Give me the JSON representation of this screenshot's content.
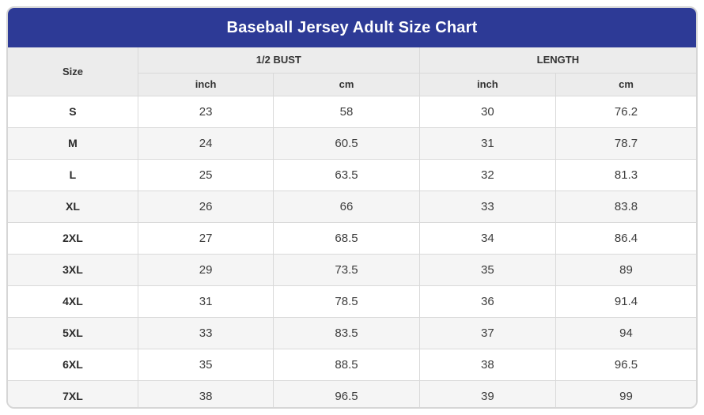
{
  "title": "Baseball Jersey Adult Size Chart",
  "table": {
    "columns": {
      "size": "Size",
      "group1": "1/2 BUST",
      "group2": "LENGTH",
      "sub": [
        "inch",
        "cm",
        "inch",
        "cm"
      ]
    },
    "rows": [
      {
        "size": "S",
        "values": [
          "23",
          "58",
          "30",
          "76.2"
        ]
      },
      {
        "size": "M",
        "values": [
          "24",
          "60.5",
          "31",
          "78.7"
        ]
      },
      {
        "size": "L",
        "values": [
          "25",
          "63.5",
          "32",
          "81.3"
        ]
      },
      {
        "size": "XL",
        "values": [
          "26",
          "66",
          "33",
          "83.8"
        ]
      },
      {
        "size": "2XL",
        "values": [
          "27",
          "68.5",
          "34",
          "86.4"
        ]
      },
      {
        "size": "3XL",
        "values": [
          "29",
          "73.5",
          "35",
          "89"
        ]
      },
      {
        "size": "4XL",
        "values": [
          "31",
          "78.5",
          "36",
          "91.4"
        ]
      },
      {
        "size": "5XL",
        "values": [
          "33",
          "83.5",
          "37",
          "94"
        ]
      },
      {
        "size": "6XL",
        "values": [
          "35",
          "88.5",
          "38",
          "96.5"
        ]
      },
      {
        "size": "7XL",
        "values": [
          "38",
          "96.5",
          "39",
          "99"
        ]
      }
    ]
  },
  "colors": {
    "header_bg": "#2d3a96",
    "header_text": "#ffffff",
    "subheader_bg": "#ececec",
    "zebra_row_bg": "#f5f5f5",
    "border": "#d9d9d9"
  }
}
